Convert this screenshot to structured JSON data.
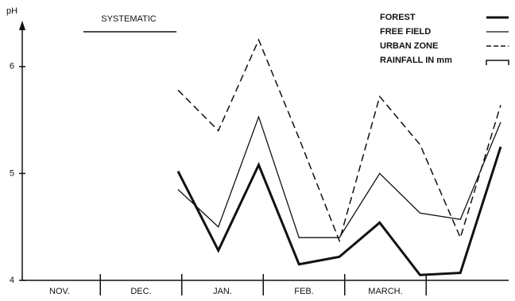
{
  "chart_data": {
    "type": "line",
    "y_label": "pH",
    "annotation": "SYSTEMATIC",
    "months": [
      "NOV.",
      "DEC.",
      "JAN.",
      "FEB.",
      "MARCH."
    ],
    "categories": [
      null,
      null,
      null,
      null,
      null,
      null,
      null,
      null,
      null
    ],
    "ylim": [
      4,
      6.4
    ],
    "yticks": [
      4,
      5,
      6
    ],
    "series": [
      {
        "name": "FOREST",
        "color": "#111111",
        "values": [
          5.02,
          4.28,
          5.08,
          4.15,
          4.22,
          4.54,
          4.05,
          4.07,
          5.25
        ]
      },
      {
        "name": "FREE FIELD",
        "color": "#111111",
        "values": [
          4.85,
          4.5,
          5.53,
          4.4,
          4.4,
          5.0,
          4.63,
          4.57,
          5.48
        ]
      },
      {
        "name": "URBAN ZONE",
        "color": "#111111",
        "values": [
          5.78,
          5.4,
          6.25,
          5.33,
          4.37,
          5.72,
          5.27,
          4.4,
          5.64
        ]
      },
      {
        "name": "RAINFALL IN mm",
        "color": "#111111",
        "values": [
          null,
          null,
          null,
          null,
          null,
          null,
          null,
          null,
          null
        ]
      }
    ]
  }
}
